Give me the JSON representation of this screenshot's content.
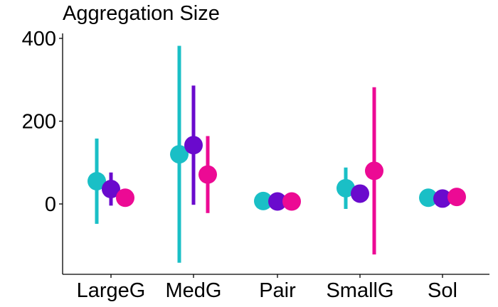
{
  "chart_data": {
    "type": "scatter",
    "title": "Aggregation Size",
    "xlabel": "",
    "ylabel": "",
    "categories": [
      "LargeG",
      "MedG",
      "Pair",
      "SmallG",
      "Sol"
    ],
    "ylim": [
      -170,
      412
    ],
    "yticks": [
      0,
      200,
      400
    ],
    "grid": false,
    "legend": "none",
    "series": [
      {
        "color": "#1ABFC6",
        "points": [
          {
            "category": "LargeG",
            "y": 55,
            "low": -48,
            "high": 158
          },
          {
            "category": "MedG",
            "y": 120,
            "low": -142,
            "high": 382
          },
          {
            "category": "Pair",
            "y": 7,
            "low": 7,
            "high": 7
          },
          {
            "category": "SmallG",
            "y": 38,
            "low": -12,
            "high": 88
          },
          {
            "category": "Sol",
            "y": 15,
            "low": 15,
            "high": 15
          }
        ]
      },
      {
        "color": "#6A0ACD",
        "points": [
          {
            "category": "LargeG",
            "y": 36,
            "low": -4,
            "high": 76
          },
          {
            "category": "MedG",
            "y": 142,
            "low": -2,
            "high": 286
          },
          {
            "category": "Pair",
            "y": 6,
            "low": 6,
            "high": 6
          },
          {
            "category": "SmallG",
            "y": 25,
            "low": 25,
            "high": 25
          },
          {
            "category": "Sol",
            "y": 13,
            "low": 13,
            "high": 13
          }
        ]
      },
      {
        "color": "#EC0A94",
        "points": [
          {
            "category": "LargeG",
            "y": 15,
            "low": -6,
            "high": 36
          },
          {
            "category": "MedG",
            "y": 71,
            "low": -22,
            "high": 164
          },
          {
            "category": "Pair",
            "y": 6,
            "low": 6,
            "high": 6
          },
          {
            "category": "SmallG",
            "y": 80,
            "low": -122,
            "high": 282
          },
          {
            "category": "Sol",
            "y": 17,
            "low": 17,
            "high": 17
          }
        ]
      }
    ]
  }
}
